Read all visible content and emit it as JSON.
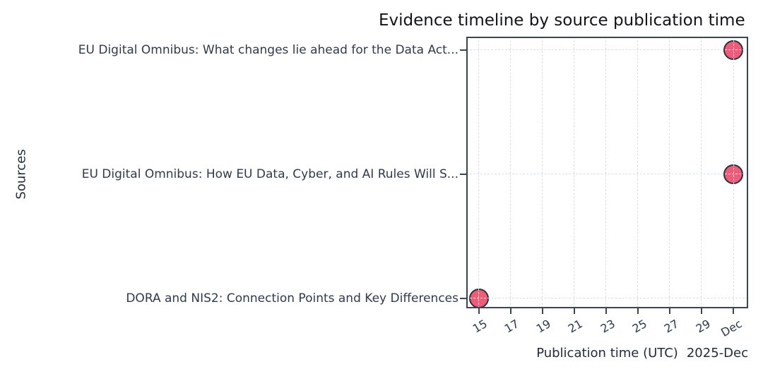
{
  "chart": {
    "title": "Evidence timeline by source publication time",
    "x_axis_label": "Publication time (UTC)",
    "x_axis_offset": "2025-Dec",
    "y_axis_label": "Sources"
  },
  "chart_data": {
    "type": "scatter",
    "title": "Evidence timeline by source publication time",
    "xlabel": "Publication time (UTC)",
    "ylabel": "Sources",
    "x_offset_label": "2025-Dec",
    "x_tick_labels": [
      "15",
      "17",
      "19",
      "21",
      "23",
      "25",
      "27",
      "29",
      "Dec"
    ],
    "x_axis_note": "ticks every 2 days, December 2025",
    "grid": true,
    "legend": false,
    "sources": [
      "EU Digital Omnibus: What changes lie ahead for the Data Act...",
      "EU Digital Omnibus: How EU Data, Cyber, and AI Rules Will S...",
      "DORA and NIS2: Connection Points and Key Differences"
    ],
    "points": [
      {
        "source": "EU Digital Omnibus: What changes lie ahead for the Data Act...",
        "row": 0,
        "tick_index": 8,
        "publication_time": "2025-12-31"
      },
      {
        "source": "EU Digital Omnibus: How EU Data, Cyber, and AI Rules Will S...",
        "row": 1,
        "tick_index": 8,
        "publication_time": "2025-12-31"
      },
      {
        "source": "DORA and NIS2: Connection Points and Key Differences",
        "row": 2,
        "tick_index": 0,
        "publication_time": "2025-12-15"
      }
    ],
    "style": {
      "marker_fill": "#f05c77",
      "marker_edge": "#2b3240",
      "grid_color": "#d8dfe9",
      "axis_border_color": "#3c4554",
      "tick_label_color": "#2f3a4c",
      "title_color": "#111318",
      "axis_label_color": "#212c3d",
      "background": "#ffffff"
    }
  }
}
